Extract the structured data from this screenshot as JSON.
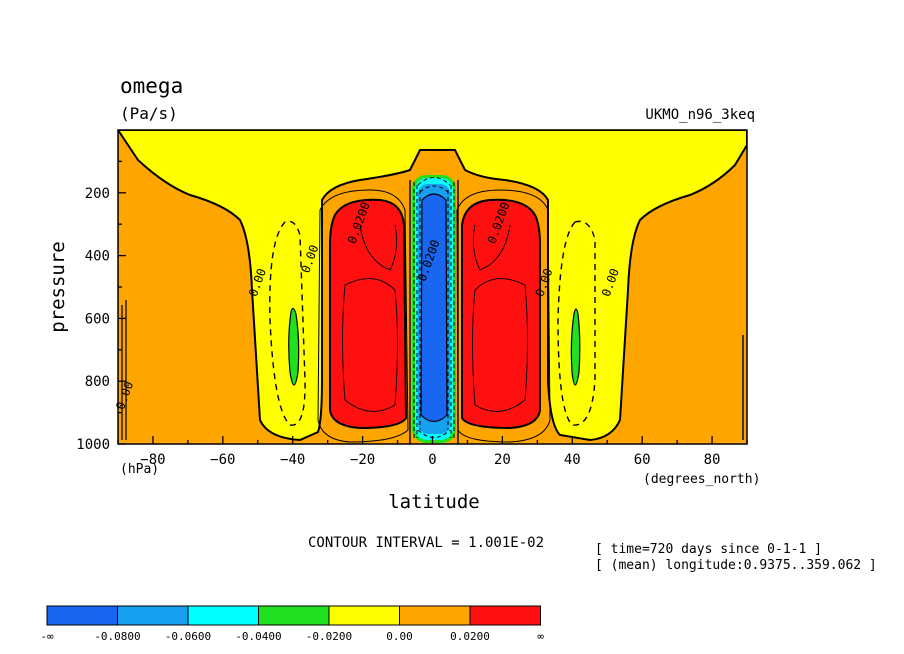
{
  "chart_data": {
    "type": "contour",
    "title": "omega",
    "units": "(Pa/s)",
    "model": "UKMO_n96_3keq",
    "xlabel": "latitude",
    "xunits": "(degrees_north)",
    "ylabel": "pressure",
    "yunits": "(hPa)",
    "xlim": [
      -90,
      90
    ],
    "ylim": [
      1000,
      0
    ],
    "xticks": [
      -80,
      -60,
      -40,
      -20,
      0,
      20,
      40,
      60,
      80
    ],
    "yticks": [
      200,
      400,
      600,
      800,
      1000
    ],
    "contour_interval_label": "CONTOUR INTERVAL = 1.001E-02",
    "info": [
      "[ time=720 days since 0-1-1 ]",
      "[ (mean) longitude:0.9375..359.062 ]"
    ],
    "contour_labels": [
      {
        "text": "0.0200",
        "x": -20,
        "y": 300
      },
      {
        "text": "0.0200",
        "x": 20,
        "y": 300
      },
      {
        "text": "0.00",
        "x": -49,
        "y": 490
      },
      {
        "text": "0.00",
        "x": -34,
        "y": 415
      },
      {
        "text": "0.00",
        "x": 33,
        "y": 490
      },
      {
        "text": "0.00",
        "x": 52,
        "y": 490
      },
      {
        "text": "0.00",
        "x": -87,
        "y": 850
      },
      {
        "text": "0.0200",
        "x": 0,
        "y": 420
      }
    ],
    "fill_regions": [
      {
        "level": "orange",
        "lat": [
          -90,
          90
        ],
        "p": [
          0,
          1000
        ]
      },
      {
        "level": "yellow",
        "desc": "upper band and subtropical downdraft columns near -40 and 40"
      },
      {
        "level": "red",
        "lat_ranges": [
          [
            -30,
            -7
          ],
          [
            7,
            30
          ]
        ],
        "p": [
          230,
          960
        ]
      },
      {
        "level": "blue",
        "lat": [
          -4,
          4
        ],
        "p": [
          190,
          970
        ]
      },
      {
        "level": "green",
        "lat_centers": [
          -40,
          40
        ],
        "p": [
          580,
          850
        ]
      }
    ],
    "legend": {
      "colors": [
        "#1966f0",
        "#17a0f0",
        "#00ffff",
        "#20e020",
        "#ffff00",
        "#ffa500",
        "#ff1010"
      ],
      "labels": [
        "-∞",
        "-0.0800",
        "-0.0600",
        "-0.0400",
        "-0.0200",
        "0.00",
        "0.0200",
        "∞"
      ]
    }
  }
}
